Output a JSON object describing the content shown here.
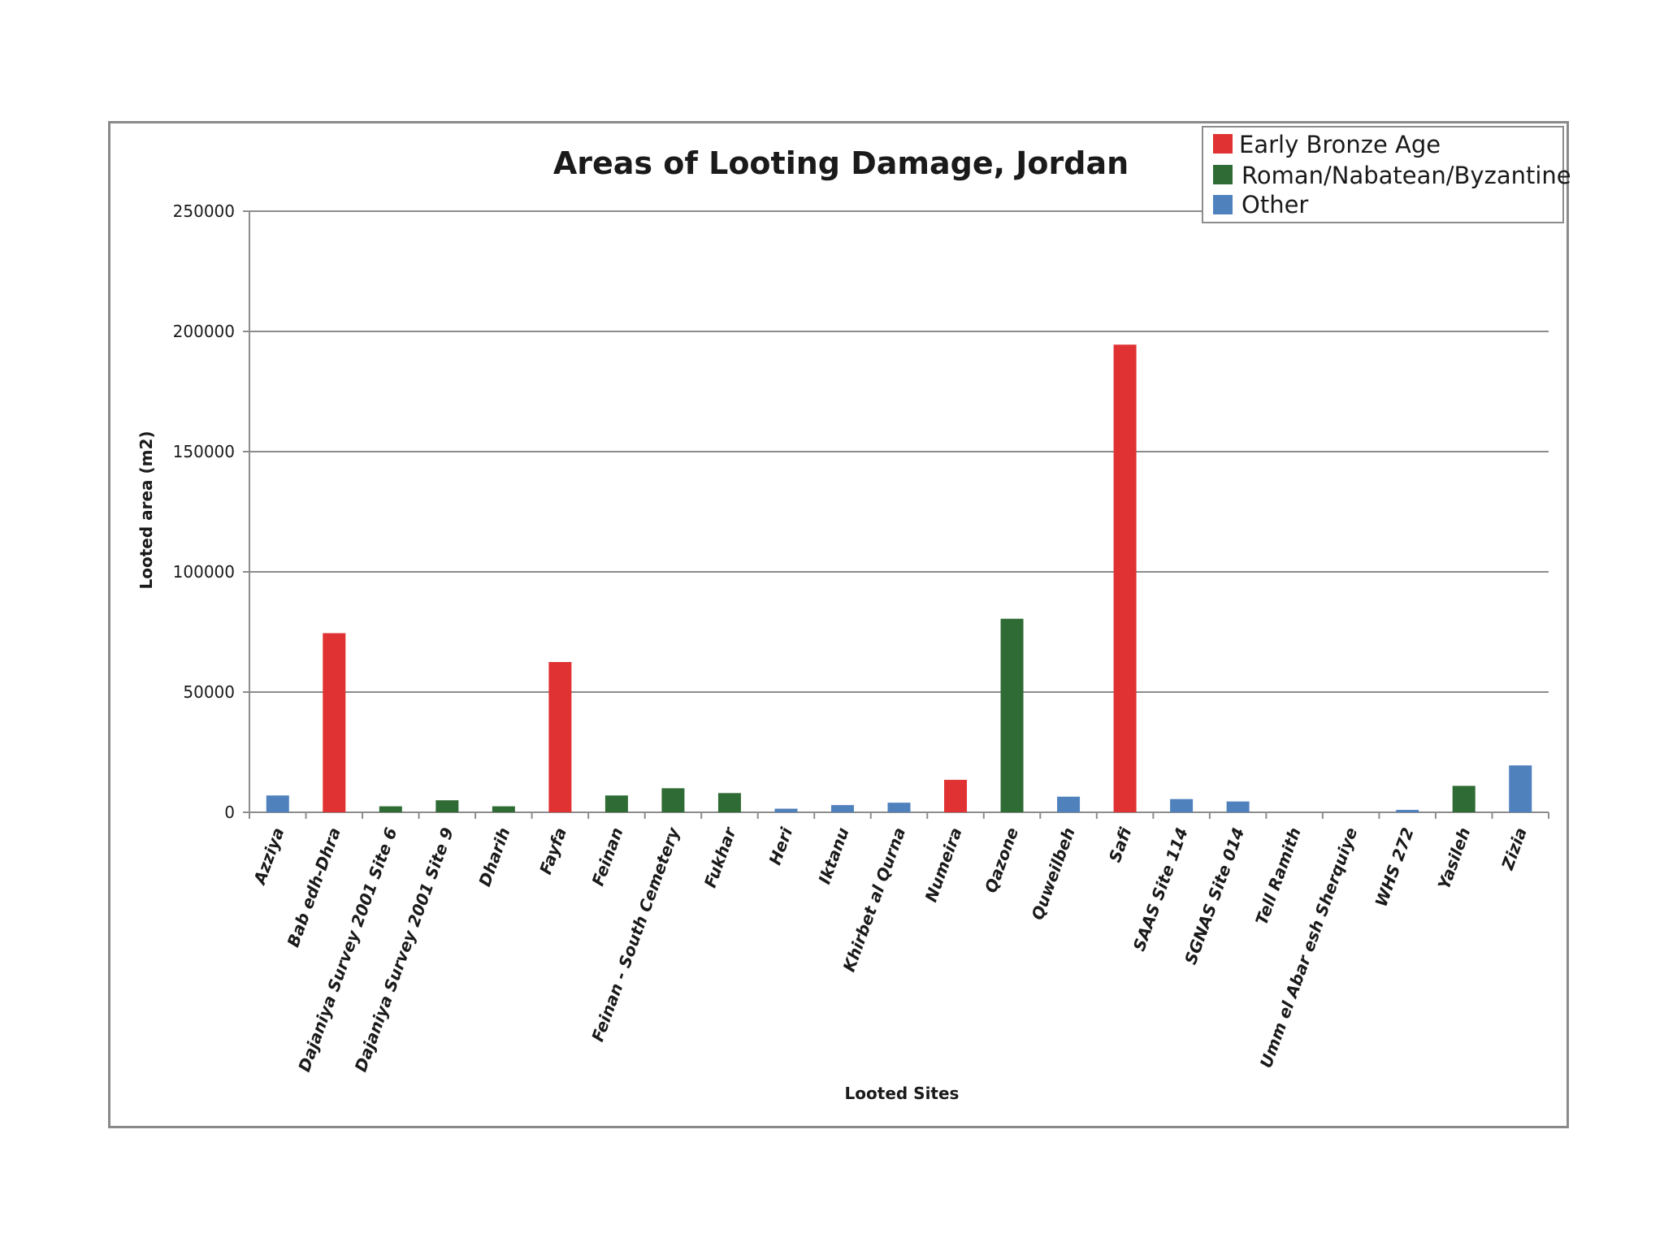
{
  "chart_data": {
    "type": "bar",
    "title": "Areas of Looting Damage, Jordan",
    "xlabel": "Looted Sites",
    "ylabel": "Looted area (m2)",
    "ylim": [
      0,
      250000
    ],
    "yticks": [
      "0",
      "50000",
      "100000",
      "150000",
      "200000",
      "250000"
    ],
    "grid": true,
    "legend_position": "top-right",
    "categories": [
      "Azziya",
      "Bab edh-Dhra",
      "Dajaniya Survey 2001 Site 6",
      "Dajaniya Survey 2001 Site 9",
      "Dharih",
      "Fayfa",
      "Feinan",
      "Feinan - South Cemetery",
      "Fukhar",
      "Heri",
      "Iktanu",
      "Khirbet al Qurna",
      "Numeira",
      "Qazone",
      "Quweilbeh",
      "Safi",
      "SAAS Site 114",
      "SGNAS Site 014",
      "Tell Ramith",
      "Umm el Abar esh Sherquiye",
      "WHS 272",
      "Yasileh",
      "Zizia"
    ],
    "values": [
      7000,
      74500,
      2500,
      5000,
      2500,
      62500,
      7000,
      10000,
      8000,
      1500,
      3000,
      4000,
      13500,
      80500,
      6500,
      194500,
      5500,
      4500,
      0,
      0,
      1000,
      11000,
      19500
    ],
    "groups": [
      "Other",
      "Early Bronze Age",
      "Roman/Nabatean/Byzantine",
      "Roman/Nabatean/Byzantine",
      "Roman/Nabatean/Byzantine",
      "Early Bronze Age",
      "Roman/Nabatean/Byzantine",
      "Roman/Nabatean/Byzantine",
      "Roman/Nabatean/Byzantine",
      "Other",
      "Other",
      "Other",
      "Early Bronze Age",
      "Roman/Nabatean/Byzantine",
      "Other",
      "Early Bronze Age",
      "Other",
      "Other",
      "Other",
      "Other",
      "Other",
      "Roman/Nabatean/Byzantine",
      "Other"
    ],
    "legend": [
      {
        "name": "Early Bronze Age",
        "color": "#e03232"
      },
      {
        "name": "Roman/Nabatean/Byzantine",
        "color": "#2f6b34"
      },
      {
        "name": "Other",
        "color": "#4f81bd"
      }
    ],
    "grid_color": "#8c8c8c",
    "axis_color": "#8c8c8c"
  }
}
